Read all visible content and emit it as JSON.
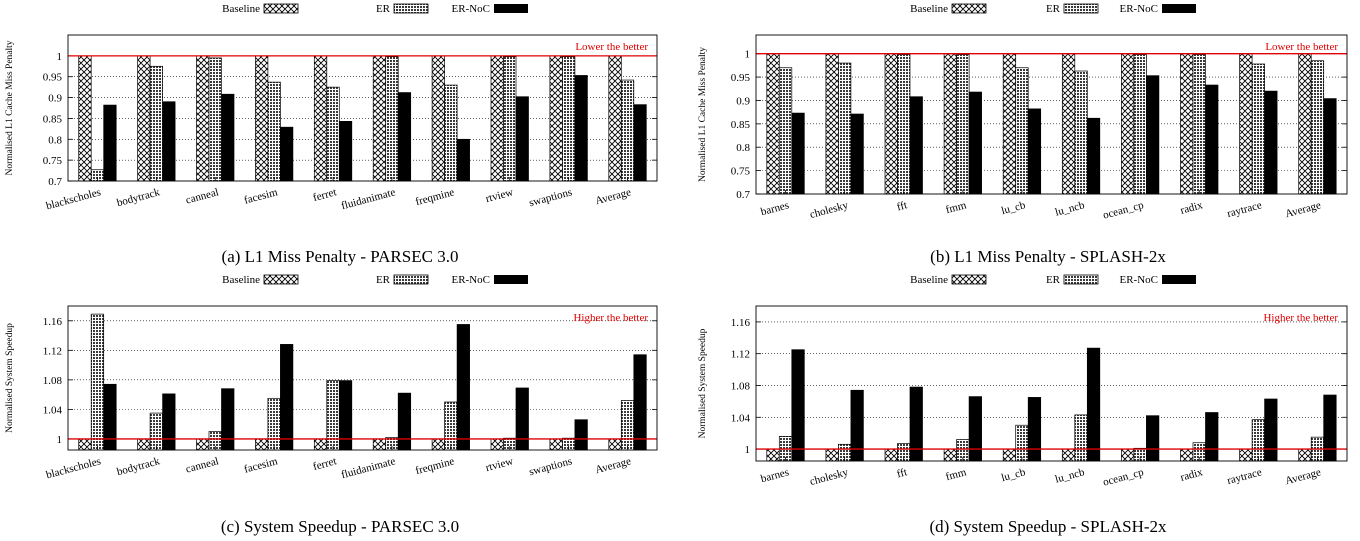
{
  "legend": {
    "baseline": "Baseline",
    "er": "ER",
    "er_noc": "ER-NoC"
  },
  "colors": {
    "reference_line": "#e00000",
    "note_text": "#e00000",
    "er_noc_fill": "#000000"
  },
  "chart_data": [
    {
      "id": "a",
      "type": "bar",
      "caption": "(a) L1 Miss Penalty - PARSEC 3.0",
      "ylabel": "Normalised L1 Cache Miss Penalty",
      "note": "Lower the better",
      "ylim": [
        0.7,
        1.05
      ],
      "yticks": [
        "0.7",
        "0.75",
        "0.8",
        "0.85",
        "0.9",
        "0.95",
        "1"
      ],
      "reference_line": 1,
      "grid": "horizontal dotted",
      "legend_position": "top",
      "categories": [
        "blackscholes",
        "bodytrack",
        "canneal",
        "facesim",
        "ferret",
        "fluidanimate",
        "freqmine",
        "rtview",
        "swaptions",
        "Average"
      ],
      "series": [
        {
          "name": "Baseline",
          "values": [
            1,
            1,
            1,
            1,
            1,
            1,
            1,
            1,
            1,
            1
          ]
        },
        {
          "name": "ER",
          "values": [
            0.727,
            0.975,
            0.995,
            0.937,
            0.925,
            0.998,
            0.93,
            0.998,
            0.998,
            0.942
          ]
        },
        {
          "name": "ER-NoC",
          "values": [
            0.882,
            0.89,
            0.908,
            0.829,
            0.843,
            0.912,
            0.8,
            0.902,
            0.953,
            0.883
          ]
        }
      ]
    },
    {
      "id": "b",
      "type": "bar",
      "caption": "(b) L1 Miss Penalty - SPLASH-2x",
      "ylabel": "Normalised L1 Cache Miss Penalty",
      "note": "Lower the better",
      "ylim": [
        0.7,
        1.04
      ],
      "yticks": [
        "0.7",
        "0.75",
        "0.8",
        "0.85",
        "0.9",
        "0.95",
        "1"
      ],
      "reference_line": 1,
      "grid": "horizontal dotted",
      "legend_position": "top",
      "categories": [
        "barnes",
        "cholesky",
        "fft",
        "fmm",
        "lu_cb",
        "lu_ncb",
        "ocean_cp",
        "radix",
        "raytrace",
        "Average"
      ],
      "series": [
        {
          "name": "Baseline",
          "values": [
            1,
            1,
            1,
            1,
            1,
            1,
            1,
            1,
            1,
            1
          ]
        },
        {
          "name": "ER",
          "values": [
            0.97,
            0.98,
            0.998,
            0.998,
            0.97,
            0.963,
            0.998,
            0.998,
            0.978,
            0.985
          ]
        },
        {
          "name": "ER-NoC",
          "values": [
            0.873,
            0.871,
            0.908,
            0.918,
            0.882,
            0.862,
            0.953,
            0.933,
            0.92,
            0.904
          ]
        }
      ]
    },
    {
      "id": "c",
      "type": "bar",
      "caption": "(c) System Speedup - PARSEC 3.0",
      "ylabel": "Normalised System Speedup",
      "note": "Higher the better",
      "ylim": [
        0.985,
        1.18
      ],
      "yticks": [
        "1",
        "1.04",
        "1.08",
        "1.12",
        "1.16"
      ],
      "reference_line": 1,
      "grid": "horizontal dotted",
      "legend_position": "top",
      "categories": [
        "blackscholes",
        "bodytrack",
        "canneal",
        "facesim",
        "ferret",
        "fluidanimate",
        "freqmine",
        "rtview",
        "swaptions",
        "Average"
      ],
      "series": [
        {
          "name": "Baseline",
          "values": [
            1,
            1,
            1,
            1,
            1,
            1,
            1,
            1,
            1,
            1
          ]
        },
        {
          "name": "ER",
          "values": [
            1.169,
            1.035,
            1.01,
            1.055,
            1.079,
            1.002,
            1.05,
            1.001,
            1.001,
            1.052
          ]
        },
        {
          "name": "ER-NoC",
          "values": [
            1.074,
            1.061,
            1.068,
            1.128,
            1.079,
            1.062,
            1.155,
            1.069,
            1.026,
            1.114
          ]
        }
      ]
    },
    {
      "id": "d",
      "type": "bar",
      "caption": "(d) System Speedup - SPLASH-2x",
      "ylabel": "Normalised System Speedup",
      "note": "Higher the better",
      "ylim": [
        0.985,
        1.18
      ],
      "yticks": [
        "1",
        "1.04",
        "1.08",
        "1.12",
        "1.16"
      ],
      "reference_line": 1,
      "grid": "horizontal dotted",
      "legend_position": "top",
      "categories": [
        "barnes",
        "cholesky",
        "fft",
        "fmm",
        "lu_cb",
        "lu_ncb",
        "ocean_cp",
        "radix",
        "raytrace",
        "Average"
      ],
      "series": [
        {
          "name": "Baseline",
          "values": [
            1,
            1,
            1,
            1,
            1,
            1,
            1,
            1,
            1,
            1
          ]
        },
        {
          "name": "ER",
          "values": [
            1.016,
            1.006,
            1.007,
            1.012,
            1.03,
            1.043,
            1.001,
            1.008,
            1.037,
            1.015
          ]
        },
        {
          "name": "ER-NoC",
          "values": [
            1.125,
            1.074,
            1.078,
            1.066,
            1.065,
            1.127,
            1.042,
            1.046,
            1.063,
            1.068
          ]
        }
      ]
    }
  ]
}
